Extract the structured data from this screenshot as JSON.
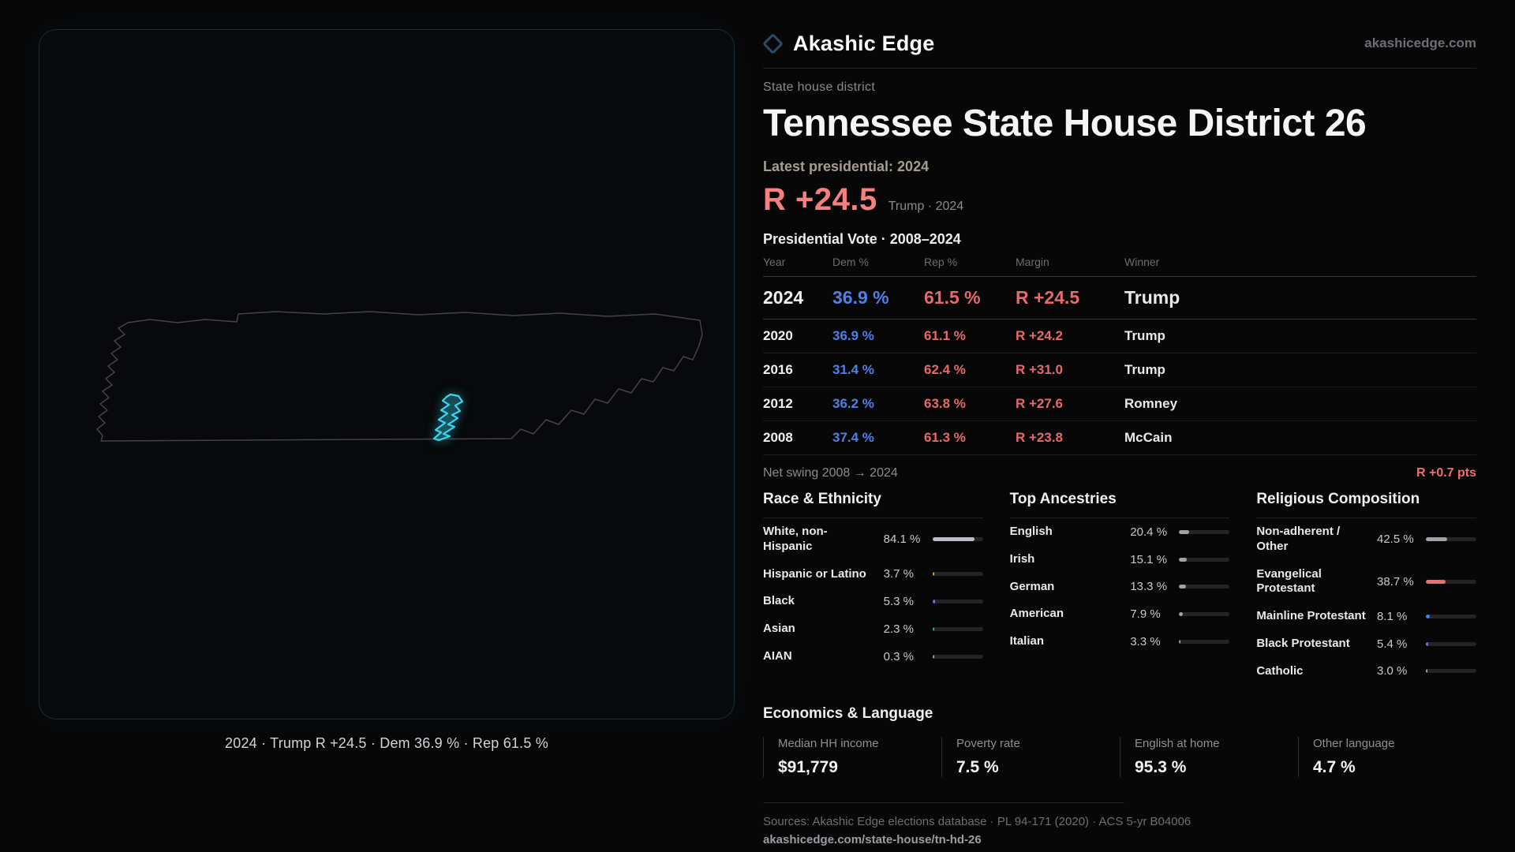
{
  "brand": {
    "name": "Akashic Edge",
    "site": "akashicedge.com"
  },
  "map_panel": {
    "caption": "2024 · Trump R +24.5 · Dem 36.9 % · Rep 61.5 %"
  },
  "header": {
    "kicker": "State house district",
    "title": "Tennessee State House District 26"
  },
  "headline": {
    "latest_label": "Latest presidential: 2024",
    "margin": "R +24.5",
    "margin_detail": "Trump · 2024"
  },
  "colors": {
    "dem_blue": "#4f80e8",
    "rep_red": "#e66a6a",
    "accent_red": "#f58080",
    "district_cyan": "#3ad6f0"
  },
  "vote_table": {
    "title": "Presidential Vote · 2008–2024",
    "columns": [
      "Year",
      "Dem %",
      "Rep %",
      "Margin",
      "Winner"
    ],
    "rows": [
      {
        "year": "2024",
        "dem": "36.9 %",
        "rep": "61.5 %",
        "margin": "R +24.5",
        "winner": "Trump"
      },
      {
        "year": "2020",
        "dem": "36.9 %",
        "rep": "61.1 %",
        "margin": "R +24.2",
        "winner": "Trump"
      },
      {
        "year": "2016",
        "dem": "31.4 %",
        "rep": "62.4 %",
        "margin": "R +31.0",
        "winner": "Trump"
      },
      {
        "year": "2012",
        "dem": "36.2 %",
        "rep": "63.8 %",
        "margin": "R +27.6",
        "winner": "Romney"
      },
      {
        "year": "2008",
        "dem": "37.4 %",
        "rep": "61.3 %",
        "margin": "R +23.8",
        "winner": "McCain"
      }
    ],
    "net_swing_label": "Net swing 2008 → 2024",
    "net_swing_value": "R +0.7 pts"
  },
  "demographics": [
    {
      "title": "Race & Ethnicity",
      "items": [
        {
          "label": "White, non-Hispanic",
          "value": "84.1 %",
          "pct": 84.1,
          "color": "#b9bec9"
        },
        {
          "label": "Hispanic or Latino",
          "value": "3.7 %",
          "pct": 3.7,
          "color": "#eab308"
        },
        {
          "label": "Black",
          "value": "5.3 %",
          "pct": 5.3,
          "color": "#8b5cf6"
        },
        {
          "label": "Asian",
          "value": "2.3 %",
          "pct": 2.3,
          "color": "#22c55e"
        },
        {
          "label": "AIAN",
          "value": "0.3 %",
          "pct": 0.3,
          "color": "#9ca3af"
        }
      ]
    },
    {
      "title": "Top Ancestries",
      "items": [
        {
          "label": "English",
          "value": "20.4 %",
          "pct": 20.4,
          "color": "#a1a1aa"
        },
        {
          "label": "Irish",
          "value": "15.1 %",
          "pct": 15.1,
          "color": "#a1a1aa"
        },
        {
          "label": "German",
          "value": "13.3 %",
          "pct": 13.3,
          "color": "#a1a1aa"
        },
        {
          "label": "American",
          "value": "7.9 %",
          "pct": 7.9,
          "color": "#a1a1aa"
        },
        {
          "label": "Italian",
          "value": "3.3 %",
          "pct": 3.3,
          "color": "#a1a1aa"
        }
      ]
    },
    {
      "title": "Religious Composition",
      "items": [
        {
          "label": "Non-adherent / Other",
          "value": "42.5 %",
          "pct": 42.5,
          "color": "#a1a1aa"
        },
        {
          "label": "Evangelical Protestant",
          "value": "38.7 %",
          "pct": 38.7,
          "color": "#e8716d"
        },
        {
          "label": "Mainline Protestant",
          "value": "8.1 %",
          "pct": 8.1,
          "color": "#3b82f6"
        },
        {
          "label": "Black Protestant",
          "value": "5.4 %",
          "pct": 5.4,
          "color": "#8b5cf6"
        },
        {
          "label": "Catholic",
          "value": "3.0 %",
          "pct": 3.0,
          "color": "#9ca3af"
        }
      ]
    }
  ],
  "economics": {
    "title": "Economics & Language",
    "stats": [
      {
        "label": "Median HH income",
        "value": "$91,779"
      },
      {
        "label": "Poverty rate",
        "value": "7.5 %"
      },
      {
        "label": "English at home",
        "value": "95.3 %"
      },
      {
        "label": "Other language",
        "value": "4.7 %"
      }
    ]
  },
  "footer": {
    "sources": "Sources: Akashic Edge elections database · PL 94-171 (2020) · ACS 5-yr B04006",
    "permalink": "akashicedge.com/state-house/tn-hd-26"
  },
  "chart_data": [
    {
      "type": "table",
      "title": "Presidential Vote · 2008–2024",
      "categories": [
        2024,
        2020,
        2016,
        2012,
        2008
      ],
      "series": [
        {
          "name": "Dem %",
          "values": [
            36.9,
            36.9,
            31.4,
            36.2,
            37.4
          ]
        },
        {
          "name": "Rep %",
          "values": [
            61.5,
            61.1,
            62.4,
            63.8,
            61.3
          ]
        },
        {
          "name": "Margin (R+)",
          "values": [
            24.5,
            24.2,
            31.0,
            27.6,
            23.8
          ]
        }
      ],
      "winners": [
        "Trump",
        "Trump",
        "Trump",
        "Romney",
        "McCain"
      ],
      "net_swing": "R +0.7 pts"
    },
    {
      "type": "bar",
      "title": "Race & Ethnicity",
      "categories": [
        "White, non-Hispanic",
        "Hispanic or Latino",
        "Black",
        "Asian",
        "AIAN"
      ],
      "values": [
        84.1,
        3.7,
        5.3,
        2.3,
        0.3
      ],
      "unit": "%",
      "xlim": [
        0,
        100
      ]
    },
    {
      "type": "bar",
      "title": "Top Ancestries",
      "categories": [
        "English",
        "Irish",
        "German",
        "American",
        "Italian"
      ],
      "values": [
        20.4,
        15.1,
        13.3,
        7.9,
        3.3
      ],
      "unit": "%",
      "xlim": [
        0,
        100
      ]
    },
    {
      "type": "bar",
      "title": "Religious Composition",
      "categories": [
        "Non-adherent / Other",
        "Evangelical Protestant",
        "Mainline Protestant",
        "Black Protestant",
        "Catholic"
      ],
      "values": [
        42.5,
        38.7,
        8.1,
        5.4,
        3.0
      ],
      "unit": "%",
      "xlim": [
        0,
        100
      ]
    },
    {
      "type": "table",
      "title": "Economics & Language",
      "categories": [
        "Median HH income",
        "Poverty rate",
        "English at home",
        "Other language"
      ],
      "values": [
        91779,
        7.5,
        95.3,
        4.7
      ]
    }
  ]
}
